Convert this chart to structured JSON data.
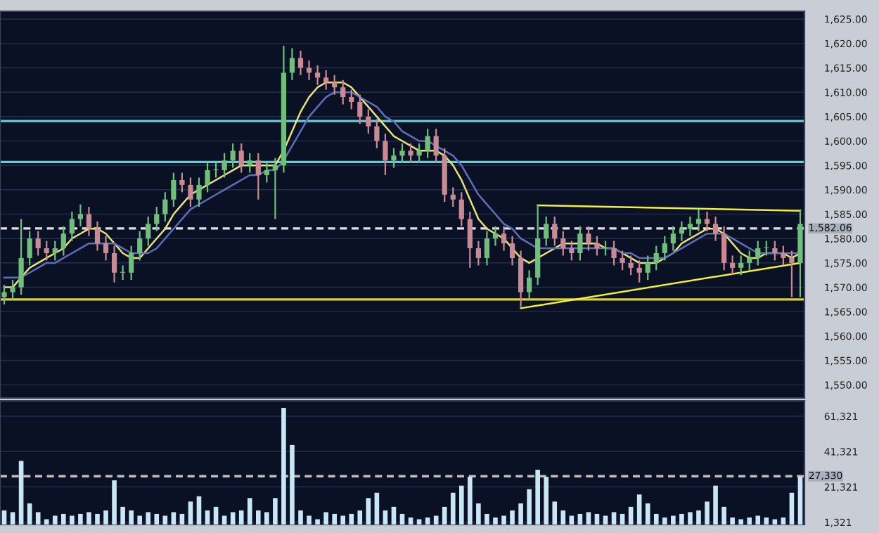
{
  "chart_data": [
    {
      "type": "candlestick",
      "categories": [
        null,
        null,
        null,
        null,
        null,
        null,
        null,
        null,
        null,
        null,
        null,
        null,
        null,
        null,
        null,
        null,
        null,
        null,
        null,
        null,
        null,
        null,
        null,
        null,
        null,
        null,
        null,
        null,
        null,
        null,
        null,
        null,
        null,
        null,
        null,
        null,
        null,
        null,
        null,
        null,
        null,
        null,
        null,
        null,
        null,
        null,
        null,
        null,
        null,
        null,
        null,
        null,
        null,
        null,
        null,
        null,
        null,
        null,
        null,
        null,
        null,
        null,
        null,
        null,
        null,
        null,
        null,
        null,
        null,
        null,
        null,
        null,
        null,
        null,
        null,
        null,
        null,
        null,
        null,
        null,
        null,
        null,
        null,
        null,
        null,
        null,
        null,
        null,
        null,
        null,
        null,
        null,
        null,
        null,
        null
      ],
      "ohlc": [
        [
          1568,
          1570.5,
          1566.5,
          1569
        ],
        [
          1569,
          1571.5,
          1567.5,
          1570
        ],
        [
          1570,
          1584,
          1568.5,
          1576
        ],
        [
          1576,
          1581.5,
          1574.5,
          1580
        ],
        [
          1580,
          1581.5,
          1576.5,
          1578
        ],
        [
          1578,
          1579.5,
          1575.5,
          1577
        ],
        [
          1577,
          1579.5,
          1575.5,
          1578
        ],
        [
          1578,
          1582.5,
          1576.5,
          1581
        ],
        [
          1581,
          1585.5,
          1579.5,
          1584
        ],
        [
          1584,
          1587,
          1582.5,
          1585
        ],
        [
          1585,
          1586.5,
          1580.5,
          1582
        ],
        [
          1582,
          1583.5,
          1577.5,
          1579
        ],
        [
          1579,
          1580.5,
          1575.5,
          1577
        ],
        [
          1577,
          1578.5,
          1571,
          1573
        ],
        [
          1573,
          1574.5,
          1571.5,
          1573
        ],
        [
          1573,
          1578.5,
          1571.5,
          1577
        ],
        [
          1577,
          1581.5,
          1575.5,
          1580
        ],
        [
          1580,
          1584.5,
          1578.5,
          1583
        ],
        [
          1583,
          1586.5,
          1581.5,
          1585
        ],
        [
          1585,
          1589.5,
          1583.5,
          1588
        ],
        [
          1588,
          1593.5,
          1586.5,
          1592
        ],
        [
          1592,
          1593.5,
          1589.5,
          1591
        ],
        [
          1591,
          1592.5,
          1586.5,
          1588
        ],
        [
          1588,
          1592.5,
          1586.5,
          1591
        ],
        [
          1591,
          1595.5,
          1589.5,
          1594
        ],
        [
          1594,
          1595.5,
          1592.5,
          1594
        ],
        [
          1594,
          1597.5,
          1592.5,
          1596
        ],
        [
          1596,
          1599.5,
          1594.5,
          1598
        ],
        [
          1598,
          1599.5,
          1593.5,
          1595
        ],
        [
          1595,
          1597.5,
          1593.5,
          1596
        ],
        [
          1596,
          1597.5,
          1588,
          1593
        ],
        [
          1593,
          1595.5,
          1591.5,
          1594
        ],
        [
          1594,
          1596.5,
          1584,
          1595
        ],
        [
          1595,
          1619.5,
          1593.5,
          1614
        ],
        [
          1614,
          1619,
          1612.5,
          1617
        ],
        [
          1617,
          1618.5,
          1613.5,
          1615
        ],
        [
          1615,
          1616.5,
          1612.5,
          1614
        ],
        [
          1614,
          1615.5,
          1611.5,
          1613
        ],
        [
          1613,
          1614.5,
          1610.5,
          1612
        ],
        [
          1612,
          1613.5,
          1609.5,
          1611
        ],
        [
          1611,
          1612.5,
          1607.5,
          1609
        ],
        [
          1609,
          1610.5,
          1606.5,
          1608
        ],
        [
          1608,
          1609.5,
          1603.5,
          1605
        ],
        [
          1605,
          1606.5,
          1601.5,
          1603
        ],
        [
          1603,
          1604.5,
          1598.5,
          1600
        ],
        [
          1600,
          1601.5,
          1593,
          1596
        ],
        [
          1596,
          1598.5,
          1594.5,
          1597
        ],
        [
          1597,
          1599.5,
          1595.5,
          1598
        ],
        [
          1598,
          1599.5,
          1595.5,
          1597
        ],
        [
          1597,
          1599.5,
          1595.5,
          1598
        ],
        [
          1598,
          1602.5,
          1596.5,
          1601
        ],
        [
          1601,
          1602.5,
          1595.5,
          1597
        ],
        [
          1597,
          1598.5,
          1587.5,
          1589
        ],
        [
          1589,
          1590.5,
          1586.5,
          1588
        ],
        [
          1588,
          1589.5,
          1582.5,
          1584
        ],
        [
          1584,
          1585.5,
          1574,
          1578
        ],
        [
          1578,
          1579.5,
          1574.5,
          1576
        ],
        [
          1576,
          1581.5,
          1574.5,
          1580
        ],
        [
          1580,
          1582.5,
          1578.5,
          1581
        ],
        [
          1581,
          1582.5,
          1577.5,
          1579
        ],
        [
          1579,
          1580.5,
          1574.5,
          1576
        ],
        [
          1576,
          1577.5,
          1566,
          1569
        ],
        [
          1569,
          1573.5,
          1567.5,
          1572
        ],
        [
          1572,
          1587,
          1570.5,
          1580
        ],
        [
          1580,
          1584.5,
          1578.5,
          1583
        ],
        [
          1583,
          1584.5,
          1578.5,
          1580
        ],
        [
          1580,
          1581.5,
          1576.5,
          1578
        ],
        [
          1578,
          1579.5,
          1575.5,
          1577
        ],
        [
          1577,
          1582.5,
          1575.5,
          1581
        ],
        [
          1581,
          1582.5,
          1577.5,
          1579
        ],
        [
          1579,
          1580.5,
          1576.5,
          1578
        ],
        [
          1578,
          1579.5,
          1576.5,
          1578
        ],
        [
          1578,
          1579.5,
          1574.5,
          1576
        ],
        [
          1576,
          1577.5,
          1573.5,
          1575
        ],
        [
          1575,
          1576.5,
          1572.5,
          1574
        ],
        [
          1574,
          1575.5,
          1571,
          1573
        ],
        [
          1573,
          1576.5,
          1571.5,
          1575
        ],
        [
          1575,
          1578.5,
          1573.5,
          1577
        ],
        [
          1577,
          1580.5,
          1575.5,
          1579
        ],
        [
          1579,
          1582.5,
          1577.5,
          1581
        ],
        [
          1581,
          1583.5,
          1579.5,
          1582
        ],
        [
          1582,
          1584.5,
          1580.5,
          1583
        ],
        [
          1583,
          1586,
          1581.5,
          1584
        ],
        [
          1584,
          1585.5,
          1581.5,
          1583
        ],
        [
          1583,
          1584.5,
          1579.5,
          1581
        ],
        [
          1581,
          1582.5,
          1573.5,
          1575
        ],
        [
          1575,
          1576.5,
          1572.5,
          1574
        ],
        [
          1574,
          1576.5,
          1572.5,
          1575
        ],
        [
          1575,
          1577.5,
          1573.5,
          1576
        ],
        [
          1576,
          1579.5,
          1574.5,
          1578
        ],
        [
          1578,
          1579.5,
          1576.5,
          1578
        ],
        [
          1578,
          1579.5,
          1575.5,
          1577
        ],
        [
          1577,
          1578.5,
          1574.5,
          1576
        ],
        [
          1576,
          1577.5,
          1568,
          1575
        ],
        [
          1575,
          1586,
          1568,
          1583
        ]
      ],
      "series": [
        {
          "type": "line",
          "color": "#e6e27a",
          "values": [
            1570,
            1570,
            1572,
            1574,
            1575,
            1576,
            1577,
            1578,
            1580,
            1581,
            1582,
            1582,
            1581,
            1579,
            1577,
            1576,
            1576,
            1578,
            1580,
            1582,
            1585,
            1587,
            1589,
            1590,
            1591,
            1592,
            1593,
            1594,
            1595,
            1595,
            1595,
            1595,
            1595,
            1598,
            1602,
            1606,
            1609,
            1611,
            1612,
            1612,
            1612,
            1611,
            1609,
            1607,
            1605,
            1603,
            1601,
            1600,
            1599,
            1598,
            1598,
            1598,
            1597,
            1595,
            1592,
            1588,
            1584,
            1582,
            1581,
            1580,
            1578,
            1576,
            1575,
            1576,
            1577,
            1578,
            1579,
            1579,
            1579,
            1579,
            1579,
            1578,
            1578,
            1577,
            1576,
            1575,
            1575,
            1575,
            1576,
            1577,
            1579,
            1580,
            1581,
            1582,
            1582,
            1581,
            1579,
            1577,
            1576,
            1576,
            1577,
            1577,
            1577,
            1576,
            1577
          ]
        },
        {
          "type": "line",
          "color": "#5d6fb8",
          "values": [
            1572,
            1572,
            1572,
            1573,
            1574,
            1575,
            1575,
            1576,
            1577,
            1578,
            1579,
            1579,
            1579,
            1579,
            1578,
            1577,
            1577,
            1577,
            1578,
            1580,
            1582,
            1584,
            1586,
            1587,
            1588,
            1589,
            1590,
            1591,
            1592,
            1593,
            1593,
            1594,
            1594,
            1596,
            1599,
            1602,
            1605,
            1607,
            1609,
            1610,
            1610,
            1610,
            1609,
            1608,
            1607,
            1605,
            1604,
            1602,
            1601,
            1600,
            1600,
            1599,
            1598,
            1597,
            1595,
            1592,
            1589,
            1587,
            1585,
            1583,
            1582,
            1580,
            1579,
            1578,
            1578,
            1578,
            1578,
            1578,
            1578,
            1578,
            1578,
            1578,
            1578,
            1577,
            1577,
            1576,
            1576,
            1576,
            1576,
            1577,
            1578,
            1579,
            1580,
            1581,
            1581,
            1581,
            1580,
            1579,
            1578,
            1577,
            1577,
            1577,
            1577,
            1577,
            1577
          ]
        },
        {
          "type": "line",
          "color": "#f2ee3c",
          "values": [
            null,
            null,
            null,
            null,
            null,
            null,
            null,
            null,
            null,
            null,
            null,
            null,
            null,
            null,
            null,
            null,
            null,
            null,
            null,
            null,
            null,
            null,
            null,
            null,
            null,
            null,
            null,
            null,
            null,
            null,
            null,
            null,
            null,
            null,
            null,
            null,
            null,
            null,
            null,
            null,
            null,
            null,
            null,
            null,
            null,
            null,
            null,
            null,
            null,
            null,
            null,
            null,
            null,
            null,
            null,
            null,
            null,
            null,
            null,
            null,
            null,
            null,
            null,
            1586.8,
            null,
            null,
            null,
            null,
            null,
            null,
            null,
            null,
            null,
            null,
            null,
            null,
            null,
            null,
            null,
            null,
            null,
            null,
            null,
            null,
            null,
            null,
            null,
            null,
            null,
            null,
            null,
            null,
            null,
            null,
            1585.7
          ]
        },
        {
          "type": "line",
          "color": "#f2ee3c",
          "values": [
            null,
            null,
            null,
            null,
            null,
            null,
            null,
            null,
            null,
            null,
            null,
            null,
            null,
            null,
            null,
            null,
            null,
            null,
            null,
            null,
            null,
            null,
            null,
            null,
            null,
            null,
            null,
            null,
            null,
            null,
            null,
            null,
            null,
            null,
            null,
            null,
            null,
            null,
            null,
            null,
            null,
            null,
            null,
            null,
            null,
            null,
            null,
            null,
            null,
            null,
            null,
            null,
            null,
            null,
            null,
            null,
            null,
            null,
            null,
            null,
            null,
            1565.7,
            null,
            null,
            null,
            null,
            null,
            null,
            null,
            null,
            null,
            null,
            null,
            null,
            null,
            null,
            null,
            null,
            null,
            null,
            null,
            null,
            null,
            null,
            null,
            null,
            null,
            null,
            null,
            null,
            null,
            null,
            null,
            null,
            1575.0
          ]
        }
      ],
      "ref_lines": [
        {
          "axis": "y",
          "value": 1604.1,
          "color": "#5fd0d8",
          "line_style": "solid"
        },
        {
          "axis": "y",
          "value": 1595.7,
          "color": "#5fd0d8",
          "line_style": "solid"
        },
        {
          "axis": "y",
          "value": 1567.5,
          "color": "#d8d040",
          "line_style": "solid"
        },
        {
          "axis": "y",
          "value": 1582.06,
          "label": "1,582.06",
          "color": "#e0e0e0",
          "line_style": "dashed"
        }
      ],
      "ylim": [
        1547.3,
        1626.6
      ],
      "yticks": [
        {
          "value": 1550,
          "label": "1,550.00"
        },
        {
          "value": 1555,
          "label": "1,555.00"
        },
        {
          "value": 1560,
          "label": "1,560.00"
        },
        {
          "value": 1565,
          "label": "1,565.00"
        },
        {
          "value": 1570,
          "label": "1,570.00"
        },
        {
          "value": 1575,
          "label": "1,575.00"
        },
        {
          "value": 1580,
          "label": "1,580.00"
        },
        {
          "value": 1585,
          "label": "1,585.00"
        },
        {
          "value": 1590,
          "label": "1,590.00"
        },
        {
          "value": 1595,
          "label": "1,595.00"
        },
        {
          "value": 1600,
          "label": "1,600.00"
        },
        {
          "value": 1605,
          "label": "1,605.00"
        },
        {
          "value": 1610,
          "label": "1,610.00"
        },
        {
          "value": 1615,
          "label": "1,615.00"
        },
        {
          "value": 1620,
          "label": "1,620.00"
        },
        {
          "value": 1625,
          "label": "1,625.00"
        }
      ],
      "grid": "y",
      "tick_labels": "y"
    },
    {
      "type": "bar",
      "categories": [
        null,
        null,
        null,
        null,
        null,
        null,
        null,
        null,
        null,
        null,
        null,
        null,
        null,
        null,
        null,
        null,
        null,
        null,
        null,
        null,
        null,
        null,
        null,
        null,
        null,
        null,
        null,
        null,
        null,
        null,
        null,
        null,
        null,
        null,
        null,
        null,
        null,
        null,
        null,
        null,
        null,
        null,
        null,
        null,
        null,
        null,
        null,
        null,
        null,
        null,
        null,
        null,
        null,
        null,
        null,
        null,
        null,
        null,
        null,
        null,
        null,
        null,
        null,
        null,
        null,
        null,
        null,
        null,
        null,
        null,
        null,
        null,
        null,
        null,
        null,
        null,
        null,
        null,
        null,
        null,
        null,
        null,
        null,
        null,
        null,
        null,
        null,
        null,
        null,
        null,
        null,
        null,
        null,
        null,
        null
      ],
      "values": [
        8000,
        7000,
        36000,
        12000,
        7000,
        3000,
        5000,
        6000,
        5000,
        6000,
        7000,
        6000,
        8000,
        25000,
        10000,
        8000,
        5000,
        7000,
        6000,
        5000,
        7000,
        6000,
        13000,
        16000,
        8000,
        10000,
        5000,
        7000,
        8000,
        15000,
        8000,
        7000,
        15000,
        66000,
        45000,
        8000,
        5000,
        3000,
        7000,
        6000,
        5000,
        6000,
        8000,
        15000,
        18000,
        8000,
        10000,
        6000,
        4000,
        3000,
        4000,
        5000,
        10000,
        18000,
        22000,
        27000,
        12000,
        6000,
        4000,
        5000,
        8000,
        12000,
        20000,
        31000,
        27000,
        13000,
        8000,
        5000,
        6000,
        7000,
        6000,
        5000,
        7000,
        6000,
        10000,
        17000,
        12000,
        6000,
        4000,
        5000,
        6000,
        7000,
        8000,
        13000,
        22000,
        10000,
        4000,
        3000,
        4000,
        5000,
        4000,
        3000,
        4000,
        18000,
        27000
      ],
      "color": "#c8e6f5",
      "ref_lines": [
        {
          "axis": "y",
          "value": 27330,
          "label": "27,330",
          "color": "#c0c0c0",
          "line_style": "dashed"
        }
      ],
      "ylim": [
        0,
        70000
      ],
      "yticks": [
        {
          "value": 1321,
          "label": "1,321"
        },
        {
          "value": 21321,
          "label": "21,321"
        },
        {
          "value": 41321,
          "label": "41,321"
        },
        {
          "value": 61321,
          "label": "61,321"
        }
      ],
      "grid": "y",
      "tick_labels": "y"
    }
  ]
}
